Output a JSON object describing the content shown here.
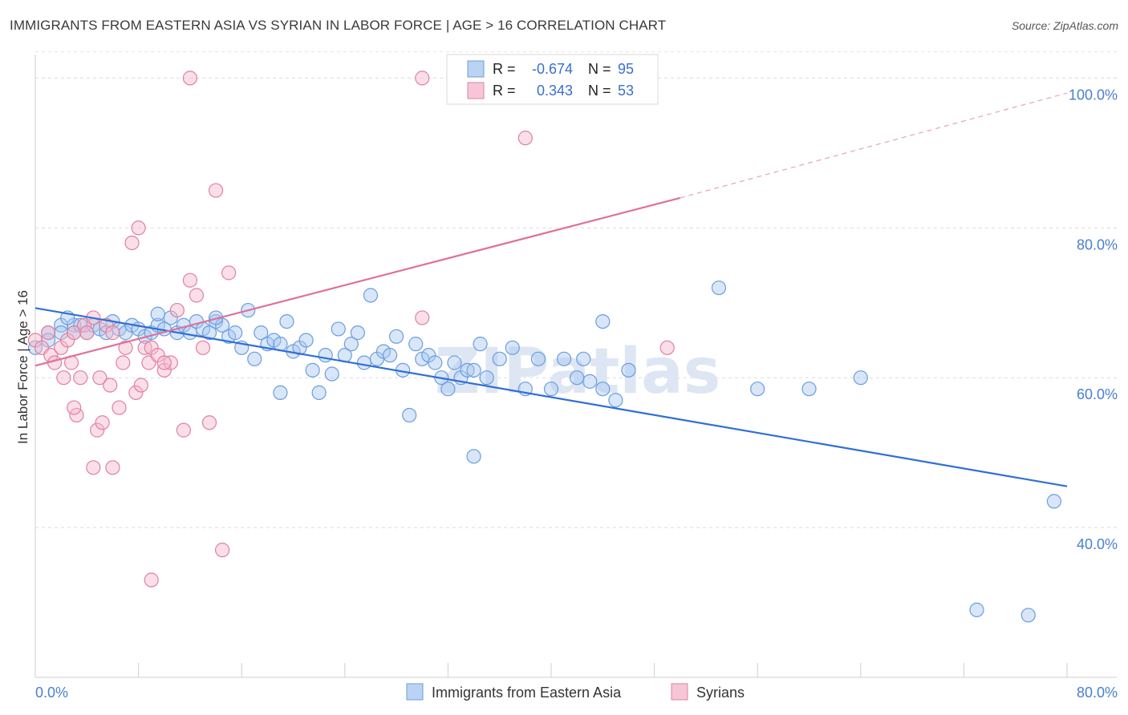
{
  "title": "IMMIGRANTS FROM EASTERN ASIA VS SYRIAN IN LABOR FORCE | AGE > 16 CORRELATION CHART",
  "source": "Source: ZipAtlas.com",
  "watermark": "ZIPatlas",
  "chart_data": {
    "type": "scatter",
    "xlabel": "",
    "ylabel": "In Labor Force | Age > 16",
    "xlim": [
      0,
      0.8
    ],
    "ylim": [
      0.2,
      1.04
    ],
    "x_tick_labels": [
      "0.0%",
      "80.0%"
    ],
    "y_ticks": [
      0.4,
      0.6,
      0.8,
      1.0
    ],
    "y_tick_labels": [
      "40.0%",
      "60.0%",
      "80.0%",
      "100.0%"
    ],
    "grid": true,
    "legend_position": "top-center",
    "stats": [
      {
        "r_label": "R =",
        "r_value": "-0.674",
        "n_label": "N =",
        "n_value": "95"
      },
      {
        "r_label": "R =",
        "r_value": "0.343",
        "n_label": "N =",
        "n_value": "53"
      }
    ],
    "series": [
      {
        "name": "Immigrants from Eastern Asia",
        "color": "#6a9de0",
        "fill": "#a9c8f0",
        "trend": {
          "x": [
            0.0,
            0.8
          ],
          "y": [
            0.693,
            0.455
          ]
        },
        "points": [
          [
            0.0,
            0.64
          ],
          [
            0.01,
            0.66
          ],
          [
            0.01,
            0.65
          ],
          [
            0.02,
            0.67
          ],
          [
            0.02,
            0.66
          ],
          [
            0.03,
            0.67
          ],
          [
            0.03,
            0.66
          ],
          [
            0.035,
            0.67
          ],
          [
            0.04,
            0.66
          ],
          [
            0.045,
            0.67
          ],
          [
            0.05,
            0.665
          ],
          [
            0.055,
            0.66
          ],
          [
            0.06,
            0.675
          ],
          [
            0.065,
            0.665
          ],
          [
            0.07,
            0.66
          ],
          [
            0.075,
            0.67
          ],
          [
            0.08,
            0.665
          ],
          [
            0.085,
            0.655
          ],
          [
            0.09,
            0.66
          ],
          [
            0.095,
            0.67
          ],
          [
            0.1,
            0.665
          ],
          [
            0.105,
            0.68
          ],
          [
            0.11,
            0.66
          ],
          [
            0.115,
            0.67
          ],
          [
            0.12,
            0.66
          ],
          [
            0.125,
            0.675
          ],
          [
            0.13,
            0.665
          ],
          [
            0.135,
            0.66
          ],
          [
            0.14,
            0.675
          ],
          [
            0.145,
            0.67
          ],
          [
            0.15,
            0.655
          ],
          [
            0.155,
            0.66
          ],
          [
            0.16,
            0.64
          ],
          [
            0.165,
            0.69
          ],
          [
            0.17,
            0.625
          ],
          [
            0.175,
            0.66
          ],
          [
            0.18,
            0.645
          ],
          [
            0.185,
            0.65
          ],
          [
            0.19,
            0.645
          ],
          [
            0.195,
            0.675
          ],
          [
            0.2,
            0.635
          ],
          [
            0.205,
            0.64
          ],
          [
            0.21,
            0.65
          ],
          [
            0.215,
            0.61
          ],
          [
            0.22,
            0.58
          ],
          [
            0.225,
            0.63
          ],
          [
            0.23,
            0.605
          ],
          [
            0.235,
            0.665
          ],
          [
            0.24,
            0.63
          ],
          [
            0.245,
            0.645
          ],
          [
            0.25,
            0.66
          ],
          [
            0.255,
            0.62
          ],
          [
            0.26,
            0.71
          ],
          [
            0.265,
            0.625
          ],
          [
            0.27,
            0.635
          ],
          [
            0.275,
            0.63
          ],
          [
            0.28,
            0.655
          ],
          [
            0.285,
            0.61
          ],
          [
            0.29,
            0.55
          ],
          [
            0.295,
            0.645
          ],
          [
            0.3,
            0.625
          ],
          [
            0.305,
            0.63
          ],
          [
            0.31,
            0.62
          ],
          [
            0.315,
            0.6
          ],
          [
            0.32,
            0.585
          ],
          [
            0.325,
            0.62
          ],
          [
            0.33,
            0.6
          ],
          [
            0.335,
            0.61
          ],
          [
            0.34,
            0.61
          ],
          [
            0.345,
            0.645
          ],
          [
            0.35,
            0.6
          ],
          [
            0.36,
            0.625
          ],
          [
            0.37,
            0.64
          ],
          [
            0.38,
            0.585
          ],
          [
            0.39,
            0.625
          ],
          [
            0.4,
            0.585
          ],
          [
            0.41,
            0.625
          ],
          [
            0.42,
            0.6
          ],
          [
            0.43,
            0.595
          ],
          [
            0.44,
            0.585
          ],
          [
            0.45,
            0.57
          ],
          [
            0.46,
            0.61
          ],
          [
            0.56,
            0.585
          ],
          [
            0.6,
            0.585
          ],
          [
            0.025,
            0.68
          ],
          [
            0.095,
            0.685
          ],
          [
            0.14,
            0.68
          ],
          [
            0.34,
            0.495
          ],
          [
            0.425,
            0.625
          ],
          [
            0.19,
            0.58
          ],
          [
            0.44,
            0.675
          ],
          [
            0.64,
            0.6
          ],
          [
            0.53,
            0.72
          ],
          [
            0.79,
            0.435
          ],
          [
            0.73,
            0.29
          ],
          [
            0.77,
            0.283
          ]
        ]
      },
      {
        "name": "Syrians",
        "color": "#e080a0",
        "fill": "#f4b8cc",
        "trend": {
          "x": [
            0.0,
            0.5
          ],
          "y": [
            0.616,
            0.84
          ],
          "dash_to": [
            0.8,
            0.98
          ]
        },
        "points": [
          [
            0.0,
            0.65
          ],
          [
            0.005,
            0.64
          ],
          [
            0.01,
            0.66
          ],
          [
            0.012,
            0.63
          ],
          [
            0.015,
            0.62
          ],
          [
            0.02,
            0.64
          ],
          [
            0.022,
            0.6
          ],
          [
            0.025,
            0.65
          ],
          [
            0.028,
            0.62
          ],
          [
            0.03,
            0.66
          ],
          [
            0.032,
            0.55
          ],
          [
            0.035,
            0.6
          ],
          [
            0.038,
            0.67
          ],
          [
            0.04,
            0.66
          ],
          [
            0.045,
            0.68
          ],
          [
            0.048,
            0.53
          ],
          [
            0.05,
            0.6
          ],
          [
            0.052,
            0.54
          ],
          [
            0.055,
            0.67
          ],
          [
            0.058,
            0.59
          ],
          [
            0.06,
            0.66
          ],
          [
            0.065,
            0.56
          ],
          [
            0.068,
            0.62
          ],
          [
            0.07,
            0.64
          ],
          [
            0.075,
            0.78
          ],
          [
            0.078,
            0.58
          ],
          [
            0.08,
            0.8
          ],
          [
            0.082,
            0.59
          ],
          [
            0.085,
            0.64
          ],
          [
            0.088,
            0.62
          ],
          [
            0.09,
            0.64
          ],
          [
            0.095,
            0.63
          ],
          [
            0.1,
            0.61
          ],
          [
            0.105,
            0.62
          ],
          [
            0.11,
            0.69
          ],
          [
            0.115,
            0.53
          ],
          [
            0.12,
            0.73
          ],
          [
            0.125,
            0.71
          ],
          [
            0.13,
            0.64
          ],
          [
            0.135,
            0.54
          ],
          [
            0.14,
            0.85
          ],
          [
            0.145,
            0.37
          ],
          [
            0.15,
            0.74
          ],
          [
            0.09,
            0.33
          ],
          [
            0.045,
            0.48
          ],
          [
            0.12,
            1.0
          ],
          [
            0.3,
            1.0
          ],
          [
            0.38,
            0.92
          ],
          [
            0.3,
            0.68
          ],
          [
            0.49,
            0.64
          ],
          [
            0.03,
            0.56
          ],
          [
            0.06,
            0.48
          ],
          [
            0.1,
            0.62
          ]
        ]
      }
    ]
  }
}
